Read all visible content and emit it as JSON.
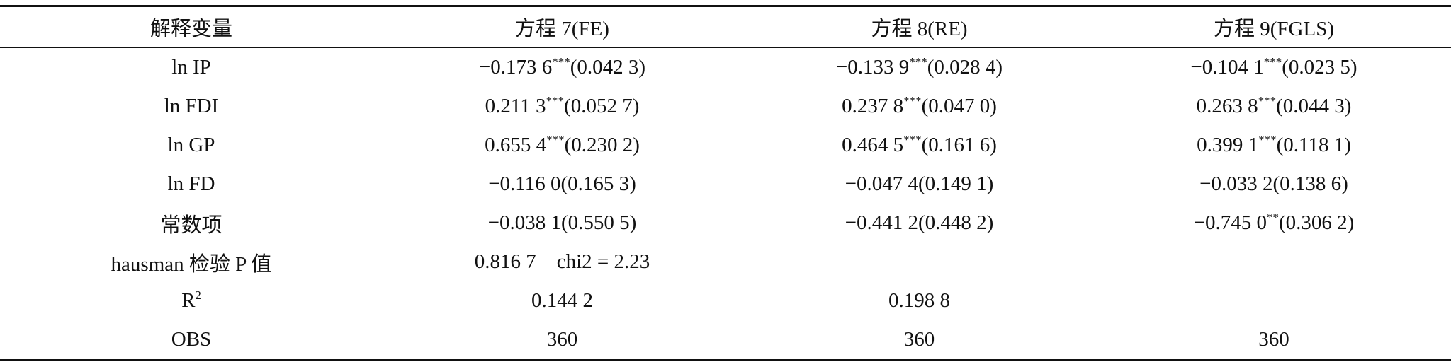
{
  "table": {
    "header": [
      "解释变量",
      "方程 7(FE)",
      "方程 8(RE)",
      "方程 9(FGLS)"
    ],
    "rows": [
      [
        "ln IP",
        {
          "coef": "−0.173 6",
          "stars": "***",
          "se": "(0.042 3)"
        },
        {
          "coef": "−0.133 9",
          "stars": "***",
          "se": "(0.028 4)"
        },
        {
          "coef": "−0.104 1",
          "stars": "***",
          "se": "(0.023 5)"
        }
      ],
      [
        "ln FDI",
        {
          "coef": "0.211 3",
          "stars": "***",
          "se": "(0.052 7)"
        },
        {
          "coef": "0.237 8",
          "stars": "***",
          "se": "(0.047 0)"
        },
        {
          "coef": "0.263 8",
          "stars": "***",
          "se": "(0.044 3)"
        }
      ],
      [
        "ln GP",
        {
          "coef": "0.655 4",
          "stars": "***",
          "se": "(0.230 2)"
        },
        {
          "coef": "0.464 5",
          "stars": "***",
          "se": "(0.161 6)"
        },
        {
          "coef": "0.399 1",
          "stars": "***",
          "se": "(0.118 1)"
        }
      ],
      [
        "ln FD",
        "−0.116 0(0.165 3)",
        "−0.047 4(0.149 1)",
        "−0.033 2(0.138 6)"
      ],
      [
        "常数项",
        "−0.038 1(0.550 5)",
        "−0.441 2(0.448 2)",
        {
          "coef": "−0.745 0",
          "stars": "**",
          "se": "(0.306 2)"
        }
      ],
      [
        "hausman 检验 P 值",
        "0.816 7    chi2 = 2.23",
        null,
        null
      ],
      [
        {
          "coef": "R",
          "stars": "2"
        },
        "0.144 2",
        "0.198 8",
        null
      ],
      [
        "OBS",
        "360",
        "360",
        "360"
      ]
    ]
  }
}
